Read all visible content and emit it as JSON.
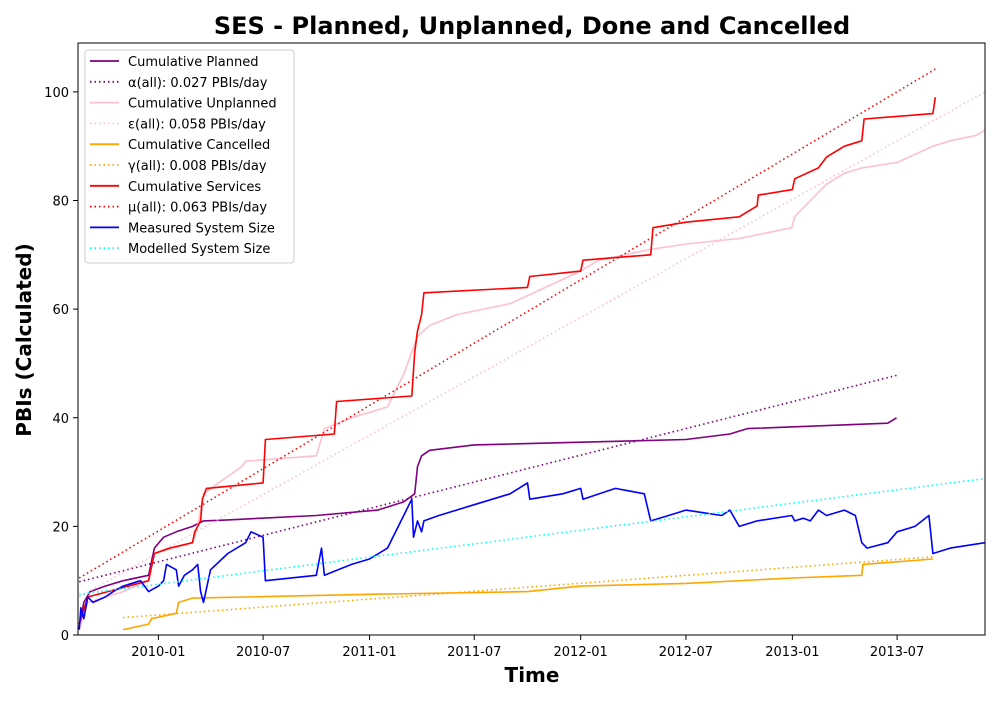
{
  "chart_data": {
    "type": "line",
    "title": "SES - Planned, Unplanned, Done  and Cancelled",
    "xlabel": "Time",
    "ylabel": "PBIs (Calculated)",
    "xlim": [
      "2009-08-15",
      "2013-11-30"
    ],
    "ylim": [
      0,
      109
    ],
    "x_ticks": [
      "2010-01",
      "2010-07",
      "2011-01",
      "2011-07",
      "2012-01",
      "2012-07",
      "2013-01",
      "2013-07"
    ],
    "y_ticks": [
      0,
      20,
      40,
      60,
      80,
      100
    ],
    "grid": false,
    "legend_position": "upper-left",
    "series": [
      {
        "name": "Cumulative Planned",
        "color": "#800080",
        "style": "solid",
        "points": [
          [
            "2009-08-17",
            1
          ],
          [
            "2009-08-25",
            6
          ],
          [
            "2009-09-05",
            8
          ],
          [
            "2009-10-01",
            9
          ],
          [
            "2009-11-01",
            10
          ],
          [
            "2009-12-15",
            11
          ],
          [
            "2009-12-25",
            16
          ],
          [
            "2010-01-10",
            18
          ],
          [
            "2010-02-01",
            19
          ],
          [
            "2010-03-01",
            20
          ],
          [
            "2010-03-20",
            21
          ],
          [
            "2010-05-01",
            21.2
          ],
          [
            "2010-10-01",
            22
          ],
          [
            "2011-01-15",
            23
          ],
          [
            "2011-03-01",
            24.5
          ],
          [
            "2011-03-20",
            26
          ],
          [
            "2011-03-25",
            31
          ],
          [
            "2011-04-01",
            33
          ],
          [
            "2011-04-15",
            34
          ],
          [
            "2011-07-01",
            35
          ],
          [
            "2012-01-01",
            35.5
          ],
          [
            "2012-07-01",
            36
          ],
          [
            "2012-09-15",
            37
          ],
          [
            "2012-10-15",
            38
          ],
          [
            "2013-06-15",
            39
          ],
          [
            "2013-06-30",
            40
          ]
        ]
      },
      {
        "name": "α(all): 0.027 PBIs/day",
        "color": "#800080",
        "style": "dotted",
        "points": [
          [
            "2009-08-17",
            9.8
          ],
          [
            "2013-06-30",
            47.8
          ]
        ]
      },
      {
        "name": "Cumulative Unplanned",
        "color": "#ffc0cb",
        "style": "solid",
        "points": [
          [
            "2009-08-17",
            1
          ],
          [
            "2009-09-01",
            6
          ],
          [
            "2009-11-01",
            8
          ],
          [
            "2009-12-15",
            10
          ],
          [
            "2009-12-25",
            15
          ],
          [
            "2010-03-01",
            17
          ],
          [
            "2010-03-10",
            20
          ],
          [
            "2010-03-20",
            26
          ],
          [
            "2010-04-15",
            28
          ],
          [
            "2010-05-25",
            31
          ],
          [
            "2010-06-01",
            32
          ],
          [
            "2010-10-01",
            33
          ],
          [
            "2010-10-15",
            38
          ],
          [
            "2010-12-01",
            40
          ],
          [
            "2011-02-01",
            42
          ],
          [
            "2011-03-01",
            48
          ],
          [
            "2011-03-25",
            55
          ],
          [
            "2011-04-15",
            57
          ],
          [
            "2011-06-01",
            59
          ],
          [
            "2011-09-01",
            61
          ],
          [
            "2011-11-01",
            64
          ],
          [
            "2012-01-01",
            67
          ],
          [
            "2012-02-01",
            69
          ],
          [
            "2012-05-01",
            71
          ],
          [
            "2012-07-01",
            72
          ],
          [
            "2012-10-01",
            73
          ],
          [
            "2012-12-31",
            75
          ],
          [
            "2013-01-05",
            77
          ],
          [
            "2013-02-01",
            80
          ],
          [
            "2013-03-01",
            83
          ],
          [
            "2013-04-01",
            85
          ],
          [
            "2013-05-01",
            86
          ],
          [
            "2013-07-01",
            87
          ],
          [
            "2013-09-01",
            90
          ],
          [
            "2013-10-01",
            91
          ],
          [
            "2013-11-15",
            92
          ],
          [
            "2013-11-30",
            93
          ]
        ]
      },
      {
        "name": "ε(all): 0.058 PBIs/day",
        "color": "#ffc0cb",
        "style": "dotted",
        "points": [
          [
            "2009-08-17",
            7.0
          ],
          [
            "2013-11-30",
            100
          ]
        ]
      },
      {
        "name": "Cumulative Cancelled",
        "color": "#ffa500",
        "style": "solid",
        "points": [
          [
            "2009-11-01",
            1
          ],
          [
            "2009-12-15",
            2
          ],
          [
            "2009-12-20",
            3
          ],
          [
            "2010-02-01",
            4
          ],
          [
            "2010-02-05",
            6
          ],
          [
            "2010-03-01",
            6.8
          ],
          [
            "2010-06-01",
            7
          ],
          [
            "2011-01-01",
            7.5
          ],
          [
            "2011-07-01",
            7.8
          ],
          [
            "2011-10-01",
            8
          ],
          [
            "2012-01-01",
            9
          ],
          [
            "2012-07-01",
            9.5
          ],
          [
            "2013-01-01",
            10.5
          ],
          [
            "2013-05-01",
            11
          ],
          [
            "2013-05-03",
            13
          ],
          [
            "2013-09-01",
            14
          ]
        ]
      },
      {
        "name": "γ(all): 0.008 PBIs/day",
        "color": "#ffa500",
        "style": "dotted",
        "points": [
          [
            "2009-11-01",
            3.2
          ],
          [
            "2013-09-01",
            14.4
          ]
        ]
      },
      {
        "name": "Cumulative Services",
        "color": "#ff0000",
        "style": "solid",
        "points": [
          [
            "2009-08-17",
            2
          ],
          [
            "2009-09-01",
            7
          ],
          [
            "2009-12-15",
            10
          ],
          [
            "2009-12-25",
            15
          ],
          [
            "2010-01-20",
            16
          ],
          [
            "2010-03-01",
            17
          ],
          [
            "2010-03-05",
            19
          ],
          [
            "2010-03-15",
            21
          ],
          [
            "2010-03-18",
            25
          ],
          [
            "2010-03-25",
            27
          ],
          [
            "2010-07-01",
            28
          ],
          [
            "2010-07-05",
            36
          ],
          [
            "2010-11-01",
            37
          ],
          [
            "2010-11-05",
            43
          ],
          [
            "2011-03-15",
            44
          ],
          [
            "2011-03-20",
            52
          ],
          [
            "2011-03-25",
            56
          ],
          [
            "2011-04-01",
            59
          ],
          [
            "2011-04-05",
            63
          ],
          [
            "2011-10-01",
            64
          ],
          [
            "2011-10-05",
            66
          ],
          [
            "2012-01-01",
            67
          ],
          [
            "2012-01-05",
            69
          ],
          [
            "2012-05-01",
            70
          ],
          [
            "2012-05-05",
            75
          ],
          [
            "2012-07-01",
            76
          ],
          [
            "2012-10-01",
            77
          ],
          [
            "2012-11-01",
            79
          ],
          [
            "2012-11-03",
            81
          ],
          [
            "2013-01-01",
            82
          ],
          [
            "2013-01-05",
            84
          ],
          [
            "2013-02-15",
            86
          ],
          [
            "2013-03-01",
            88
          ],
          [
            "2013-04-01",
            90
          ],
          [
            "2013-05-01",
            91
          ],
          [
            "2013-05-05",
            95
          ],
          [
            "2013-09-01",
            96
          ],
          [
            "2013-09-05",
            99
          ]
        ]
      },
      {
        "name": "μ(all): 0.063 PBIs/day",
        "color": "#ff0000",
        "style": "dotted",
        "points": [
          [
            "2009-08-17",
            10.5
          ],
          [
            "2013-09-05",
            104.2
          ]
        ]
      },
      {
        "name": "Measured System Size",
        "color": "#0000ff",
        "style": "solid",
        "points": [
          [
            "2009-08-17",
            1
          ],
          [
            "2009-08-20",
            5
          ],
          [
            "2009-08-25",
            3
          ],
          [
            "2009-09-01",
            7
          ],
          [
            "2009-09-10",
            6
          ],
          [
            "2009-10-01",
            7
          ],
          [
            "2009-10-15",
            8
          ],
          [
            "2009-11-01",
            9
          ],
          [
            "2009-12-01",
            10
          ],
          [
            "2009-12-15",
            8
          ],
          [
            "2010-01-01",
            9
          ],
          [
            "2010-01-10",
            10
          ],
          [
            "2010-01-15",
            13
          ],
          [
            "2010-02-01",
            12
          ],
          [
            "2010-02-05",
            9
          ],
          [
            "2010-02-15",
            11
          ],
          [
            "2010-03-01",
            12
          ],
          [
            "2010-03-10",
            13
          ],
          [
            "2010-03-15",
            8
          ],
          [
            "2010-03-20",
            6
          ],
          [
            "2010-04-01",
            12
          ],
          [
            "2010-05-01",
            15
          ],
          [
            "2010-06-01",
            17
          ],
          [
            "2010-06-10",
            19
          ],
          [
            "2010-07-01",
            18
          ],
          [
            "2010-07-05",
            10
          ],
          [
            "2010-10-01",
            11
          ],
          [
            "2010-10-10",
            16
          ],
          [
            "2010-10-15",
            11
          ],
          [
            "2010-12-01",
            13
          ],
          [
            "2011-01-01",
            14
          ],
          [
            "2011-02-01",
            16
          ],
          [
            "2011-03-01",
            22
          ],
          [
            "2011-03-15",
            25
          ],
          [
            "2011-03-18",
            18
          ],
          [
            "2011-03-25",
            21
          ],
          [
            "2011-04-01",
            19
          ],
          [
            "2011-04-05",
            21
          ],
          [
            "2011-05-01",
            22
          ],
          [
            "2011-07-01",
            24
          ],
          [
            "2011-09-01",
            26
          ],
          [
            "2011-10-01",
            28
          ],
          [
            "2011-10-05",
            25
          ],
          [
            "2011-12-01",
            26
          ],
          [
            "2012-01-01",
            27
          ],
          [
            "2012-01-05",
            25
          ],
          [
            "2012-03-01",
            27
          ],
          [
            "2012-04-20",
            26
          ],
          [
            "2012-05-01",
            21
          ],
          [
            "2012-06-01",
            22
          ],
          [
            "2012-07-01",
            23
          ],
          [
            "2012-08-01",
            22.5
          ],
          [
            "2012-09-01",
            22
          ],
          [
            "2012-09-15",
            23
          ],
          [
            "2012-10-01",
            20
          ],
          [
            "2012-11-01",
            21
          ],
          [
            "2012-12-31",
            22
          ],
          [
            "2013-01-05",
            21
          ],
          [
            "2013-01-20",
            21.5
          ],
          [
            "2013-02-01",
            21
          ],
          [
            "2013-02-15",
            23
          ],
          [
            "2013-03-01",
            22
          ],
          [
            "2013-04-01",
            23
          ],
          [
            "2013-04-20",
            22
          ],
          [
            "2013-05-01",
            17
          ],
          [
            "2013-05-10",
            16
          ],
          [
            "2013-06-15",
            17
          ],
          [
            "2013-07-01",
            19
          ],
          [
            "2013-08-01",
            20
          ],
          [
            "2013-08-25",
            22
          ],
          [
            "2013-09-01",
            15
          ],
          [
            "2013-10-01",
            16
          ],
          [
            "2013-11-30",
            17
          ]
        ]
      },
      {
        "name": "Modelled System Size",
        "color": "#00ffff",
        "style": "dotted",
        "points": [
          [
            "2009-08-17",
            7.5
          ],
          [
            "2013-11-30",
            28.8
          ]
        ]
      }
    ]
  }
}
